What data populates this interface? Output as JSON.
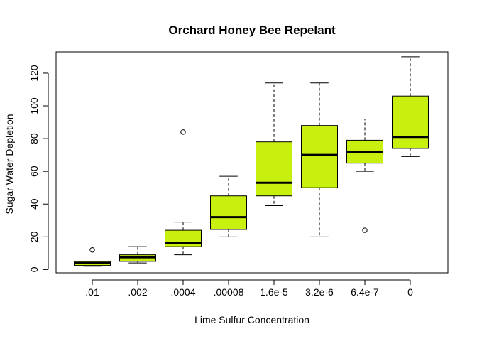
{
  "chart_data": {
    "type": "boxplot",
    "title": "Orchard Honey Bee Repelant",
    "xlabel": "Lime Sulfur Concentration",
    "ylabel": "Sugar Water Depletion",
    "ylim": [
      -2,
      133
    ],
    "yticks": [
      0,
      20,
      40,
      60,
      80,
      100,
      120
    ],
    "ytick_labels": [
      "0",
      "20",
      "40",
      "60",
      "80",
      "100",
      "120"
    ],
    "box_color": "#c8f00f",
    "grid": false,
    "categories": [
      ".01",
      ".002",
      ".0004",
      ".00008",
      "1.6e-5",
      "3.2e-6",
      "6.4e-7",
      "0"
    ],
    "boxes": [
      {
        "category": ".01",
        "whisker_low": 2,
        "q1": 2.5,
        "median": 4,
        "q3": 5,
        "whisker_high": 5,
        "outliers": [
          12
        ]
      },
      {
        "category": ".002",
        "whisker_low": 4,
        "q1": 5,
        "median": 7.5,
        "q3": 9,
        "whisker_high": 14,
        "outliers": []
      },
      {
        "category": ".0004",
        "whisker_low": 9,
        "q1": 14,
        "median": 16,
        "q3": 24,
        "whisker_high": 29,
        "outliers": [
          84
        ]
      },
      {
        "category": ".00008",
        "whisker_low": 20,
        "q1": 24.5,
        "median": 32,
        "q3": 45,
        "whisker_high": 57,
        "outliers": []
      },
      {
        "category": "1.6e-5",
        "whisker_low": 39,
        "q1": 45,
        "median": 53,
        "q3": 78,
        "whisker_high": 114,
        "outliers": []
      },
      {
        "category": "3.2e-6",
        "whisker_low": 20,
        "q1": 50,
        "median": 70,
        "q3": 88,
        "whisker_high": 114,
        "outliers": []
      },
      {
        "category": "6.4e-7",
        "whisker_low": 60,
        "q1": 65,
        "median": 72,
        "q3": 79,
        "whisker_high": 92,
        "outliers": [
          24
        ]
      },
      {
        "category": "0",
        "whisker_low": 69,
        "q1": 74,
        "median": 81,
        "q3": 106,
        "whisker_high": 130,
        "outliers": []
      }
    ]
  }
}
